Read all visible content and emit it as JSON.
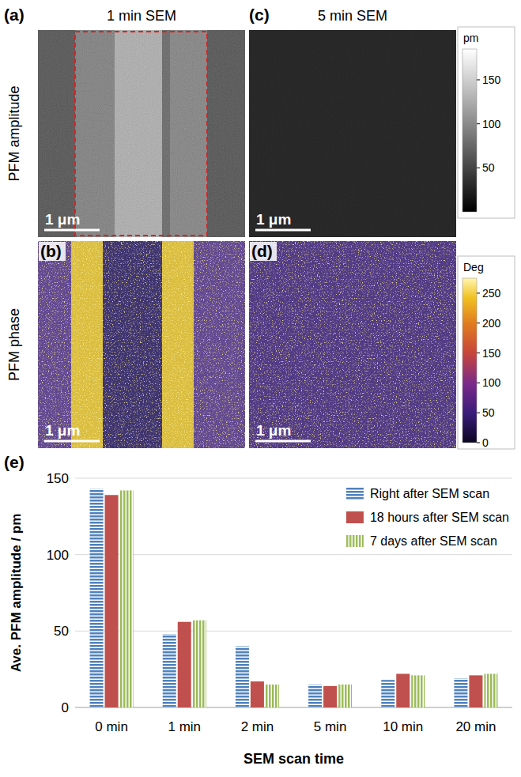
{
  "row_labels": [
    "PFM amplitude",
    "PFM phase"
  ],
  "column_titles": [
    "1 min SEM",
    "5 min SEM"
  ],
  "image_panels": [
    {
      "letter": "(a)",
      "scale_bar": "1 μm"
    },
    {
      "letter": "(b)",
      "scale_bar": "1 μm"
    },
    {
      "letter": "(c)",
      "scale_bar": "1 μm"
    },
    {
      "letter": "(d)",
      "scale_bar": "1 μm"
    }
  ],
  "colorbars": [
    {
      "unit": "pm",
      "range": [
        0,
        185
      ],
      "ticks": [
        50,
        100,
        150
      ]
    },
    {
      "unit": "Deg",
      "range": [
        0,
        275
      ],
      "ticks": [
        0,
        50,
        100,
        150,
        200,
        250
      ]
    }
  ],
  "chart_panel_label": "(e)",
  "chart_data": {
    "type": "bar",
    "x_label": "SEM scan time",
    "y_label": "Ave. PFM amplitude / pm",
    "categories": [
      "0 min",
      "1 min",
      "2 min",
      "5 min",
      "10 min",
      "20 min"
    ],
    "series": [
      {
        "name": "Right after SEM scan",
        "color": "#4f81bd",
        "values": [
          143,
          48,
          40,
          15,
          18,
          19
        ]
      },
      {
        "name": "18 hours after SEM scan",
        "color": "#c0504d",
        "values": [
          139,
          56,
          17,
          14,
          22,
          21
        ]
      },
      {
        "name": "7 days after SEM scan",
        "color": "#9bbb59",
        "values": [
          142,
          57,
          15,
          15,
          21,
          22
        ]
      }
    ],
    "ylim": [
      0,
      150
    ],
    "yticks": [
      0,
      50,
      100,
      150
    ],
    "grid": true,
    "legend": "upper right"
  }
}
